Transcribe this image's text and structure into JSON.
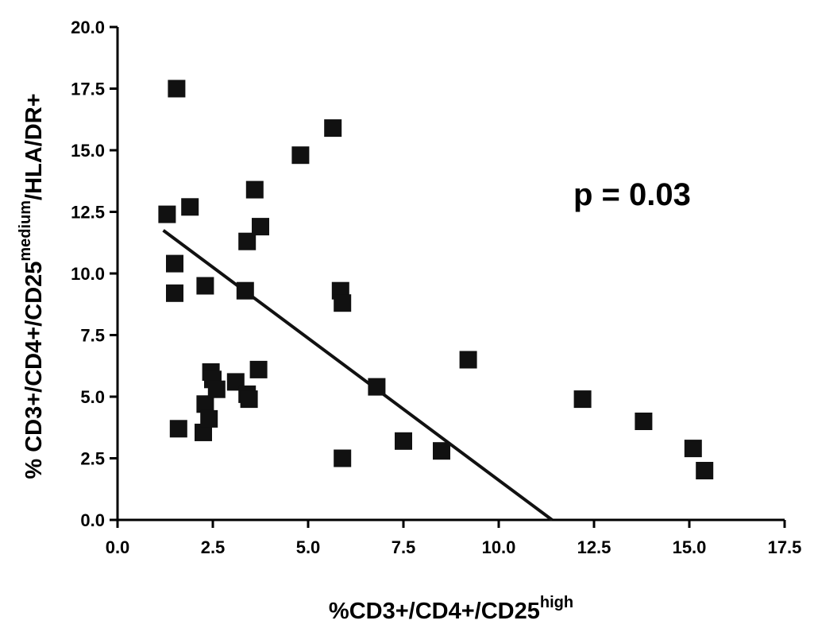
{
  "chart_data": {
    "type": "scatter",
    "title": "",
    "xlabel": {
      "prefix": "%CD3+/CD4+/CD25",
      "superscript": "high",
      "suffix": ""
    },
    "ylabel": {
      "prefix": "% CD3+/CD4+/CD25",
      "superscript": "medium",
      "suffix": "/HLA/DR+"
    },
    "xlim": [
      0,
      17.5
    ],
    "ylim": [
      0,
      20
    ],
    "xticks": [
      "0.0",
      "2.5",
      "5.0",
      "7.5",
      "10.0",
      "12.5",
      "15.0",
      "17.5"
    ],
    "yticks": [
      "0.0",
      "2.5",
      "5.0",
      "7.5",
      "10.0",
      "12.5",
      "15.0",
      "17.5",
      "20.0"
    ],
    "grid": false,
    "annotation": "p = 0.03",
    "points": [
      {
        "x": 1.3,
        "y": 12.4
      },
      {
        "x": 1.5,
        "y": 10.4
      },
      {
        "x": 1.5,
        "y": 9.2
      },
      {
        "x": 1.55,
        "y": 17.5
      },
      {
        "x": 1.6,
        "y": 3.7
      },
      {
        "x": 1.9,
        "y": 12.7
      },
      {
        "x": 2.25,
        "y": 3.55
      },
      {
        "x": 2.3,
        "y": 9.5
      },
      {
        "x": 2.3,
        "y": 4.7
      },
      {
        "x": 2.4,
        "y": 4.1
      },
      {
        "x": 2.45,
        "y": 6.0
      },
      {
        "x": 2.5,
        "y": 5.7
      },
      {
        "x": 2.6,
        "y": 5.3
      },
      {
        "x": 3.1,
        "y": 5.6
      },
      {
        "x": 3.35,
        "y": 9.3
      },
      {
        "x": 3.4,
        "y": 11.3
      },
      {
        "x": 3.4,
        "y": 5.1
      },
      {
        "x": 3.45,
        "y": 4.9
      },
      {
        "x": 3.6,
        "y": 13.4
      },
      {
        "x": 3.7,
        "y": 6.1
      },
      {
        "x": 3.75,
        "y": 11.9
      },
      {
        "x": 4.8,
        "y": 14.8
      },
      {
        "x": 5.65,
        "y": 15.9
      },
      {
        "x": 5.85,
        "y": 9.3
      },
      {
        "x": 5.9,
        "y": 8.8
      },
      {
        "x": 5.9,
        "y": 2.5
      },
      {
        "x": 6.8,
        "y": 5.4
      },
      {
        "x": 7.5,
        "y": 3.2
      },
      {
        "x": 8.5,
        "y": 2.8
      },
      {
        "x": 9.2,
        "y": 6.5
      },
      {
        "x": 12.2,
        "y": 4.9
      },
      {
        "x": 13.8,
        "y": 4.0
      },
      {
        "x": 15.1,
        "y": 2.9
      },
      {
        "x": 15.4,
        "y": 2.0
      }
    ],
    "fit_line": {
      "x": [
        1.2,
        11.4
      ],
      "y": [
        11.75,
        0.0
      ]
    },
    "colors": {
      "marker": "#111111",
      "line": "#111111",
      "axis": "#000000"
    }
  }
}
